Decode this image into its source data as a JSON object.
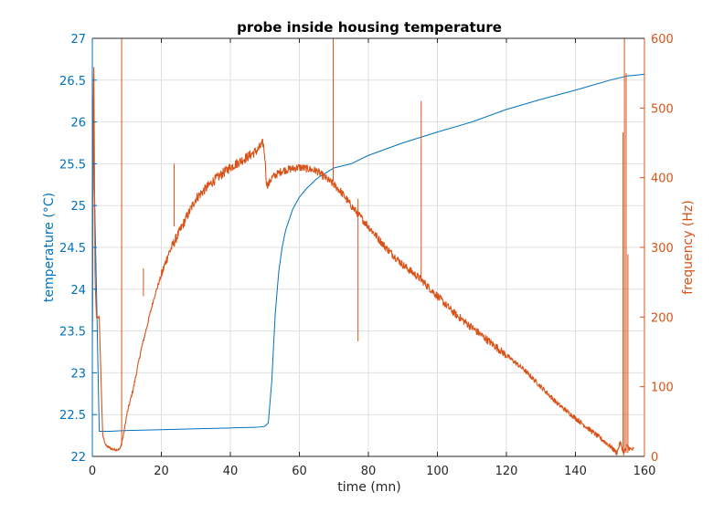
{
  "chart_data": {
    "type": "line",
    "title": "probe inside housing temperature",
    "xlabel": "time (mn)",
    "ylabel_left": "temperature (°C)",
    "ylabel_right": "frequency (Hz)",
    "xlim": [
      0,
      160
    ],
    "ylim_left": [
      22,
      27
    ],
    "ylim_right": [
      0,
      600
    ],
    "x_ticks": [
      "0",
      "20",
      "40",
      "60",
      "80",
      "100",
      "120",
      "140",
      "160"
    ],
    "y_left_ticks": [
      "22",
      "22.5",
      "23",
      "23.5",
      "24",
      "24.5",
      "25",
      "25.5",
      "26",
      "26.5",
      "27"
    ],
    "y_right_ticks": [
      "0",
      "100",
      "200",
      "300",
      "400",
      "500",
      "600"
    ],
    "grid": true,
    "colors": {
      "temperature": "#0072bd",
      "frequency": "#d95319",
      "axis": "#262626",
      "grid": "#dfdfdf"
    },
    "series": [
      {
        "axis": "left",
        "x": [
          0,
          0.3,
          0.6,
          1.2,
          2,
          5,
          10,
          20,
          30,
          40,
          48,
          50,
          51,
          52,
          53,
          54,
          55,
          56,
          58,
          60,
          62,
          65,
          68,
          70,
          75,
          80,
          90,
          100,
          110,
          120,
          130,
          140,
          150,
          155,
          160
        ],
        "values": [
          23.2,
          26.3,
          25.2,
          24.0,
          22.3,
          22.3,
          22.31,
          22.32,
          22.33,
          22.34,
          22.35,
          22.36,
          22.4,
          22.9,
          23.7,
          24.2,
          24.5,
          24.7,
          24.95,
          25.1,
          25.2,
          25.32,
          25.4,
          25.45,
          25.5,
          25.6,
          25.75,
          25.88,
          26.0,
          26.15,
          26.27,
          26.38,
          26.5,
          26.55,
          26.57
        ]
      },
      {
        "axis": "right",
        "x": [
          0,
          0.4,
          0.8,
          1.2,
          2,
          3,
          4,
          6,
          8,
          9,
          10,
          12,
          14,
          16,
          18,
          20,
          22,
          25,
          28,
          30,
          35,
          40,
          45,
          48,
          49.5,
          50,
          50.5,
          51,
          52,
          55,
          60,
          65,
          70,
          72,
          75,
          80,
          85,
          90,
          95,
          100,
          105,
          110,
          115,
          120,
          125,
          130,
          135,
          140,
          145,
          150,
          152,
          153,
          154,
          155,
          156,
          157
        ],
        "values": [
          170,
          600,
          250,
          200,
          200,
          30,
          15,
          10,
          10,
          30,
          60,
          100,
          150,
          190,
          230,
          260,
          290,
          320,
          350,
          370,
          395,
          415,
          430,
          440,
          450,
          430,
          390,
          390,
          400,
          410,
          415,
          410,
          390,
          380,
          360,
          330,
          300,
          275,
          255,
          230,
          205,
          185,
          165,
          145,
          125,
          100,
          75,
          55,
          35,
          15,
          5,
          20,
          5,
          15,
          10,
          10
        ]
      }
    ],
    "spikes": [
      {
        "axis": "right",
        "x": 8.5,
        "from": 15,
        "to": 600
      },
      {
        "axis": "right",
        "x": 14.8,
        "from": 230,
        "to": 270
      },
      {
        "axis": "right",
        "x": 23.7,
        "from": 330,
        "to": 420
      },
      {
        "axis": "right",
        "x": 69.8,
        "from": 395,
        "to": 600
      },
      {
        "axis": "right",
        "x": 77,
        "from": 165,
        "to": 370
      },
      {
        "axis": "right",
        "x": 95.3,
        "from": 250,
        "to": 510
      },
      {
        "axis": "right",
        "x": 153.8,
        "from": 5,
        "to": 465
      },
      {
        "axis": "right",
        "x": 154.2,
        "from": 5,
        "to": 600
      },
      {
        "axis": "right",
        "x": 154.7,
        "from": 5,
        "to": 550
      },
      {
        "axis": "right",
        "x": 155.2,
        "from": 5,
        "to": 290
      }
    ]
  }
}
